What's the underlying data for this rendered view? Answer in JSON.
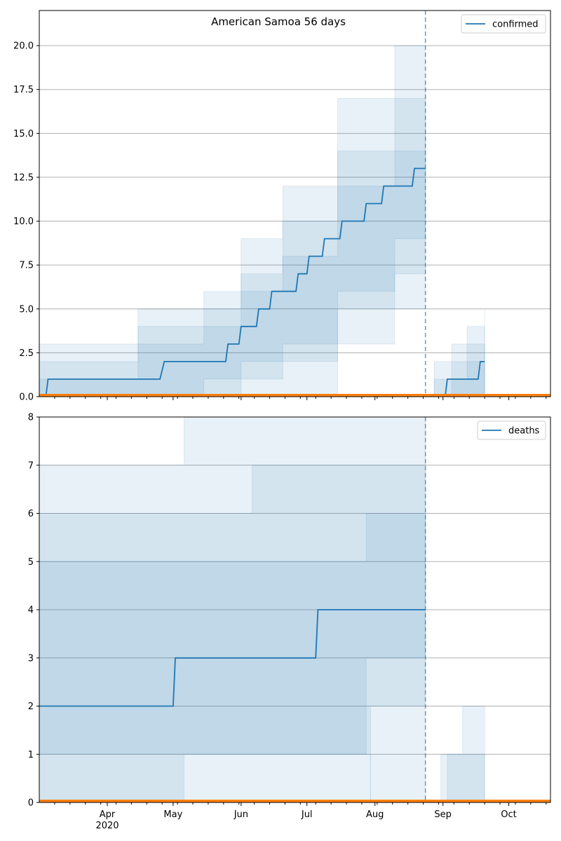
{
  "chart_data": [
    {
      "type": "line",
      "title": "American Samoa 56 days",
      "xlabel": "",
      "ylabel": "",
      "ylim": [
        0,
        22
      ],
      "yticks": [
        "0.0",
        "2.5",
        "5.0",
        "7.5",
        "10.0",
        "12.5",
        "15.0",
        "17.5",
        "20.0"
      ],
      "ytick_values": [
        0,
        2.5,
        5,
        7.5,
        10,
        12.5,
        15,
        17.5,
        20
      ],
      "grid": "horizontal",
      "legend": "top-right",
      "forecast_date": "2020-08-24",
      "series": [
        {
          "name": "confirmed",
          "color": "#1f77b4",
          "segments": [
            {
              "x": [
                "2020-03-04",
                "2020-03-05",
                "2020-04-25",
                "2020-04-27",
                "2020-05-25",
                "2020-05-26",
                "2020-05-31",
                "2020-06-01",
                "2020-06-08",
                "2020-06-09",
                "2020-06-14",
                "2020-06-15",
                "2020-06-26",
                "2020-06-27",
                "2020-07-01",
                "2020-07-02",
                "2020-07-08",
                "2020-07-09",
                "2020-07-16",
                "2020-07-17",
                "2020-07-27",
                "2020-07-28",
                "2020-08-04",
                "2020-08-05",
                "2020-08-18",
                "2020-08-19",
                "2020-08-24"
              ],
              "y": [
                0,
                1,
                1,
                2,
                2,
                3,
                3,
                4,
                4,
                5,
                5,
                6,
                6,
                7,
                7,
                8,
                8,
                9,
                9,
                10,
                10,
                11,
                11,
                12,
                12,
                13,
                13
              ]
            },
            {
              "x": [
                "2020-09-02",
                "2020-09-03",
                "2020-09-17",
                "2020-09-18",
                "2020-09-20"
              ],
              "y": [
                0,
                1,
                1,
                2,
                2
              ]
            }
          ]
        }
      ],
      "bands": [
        {
          "seg": 0,
          "x": [
            "2020-03-01",
            "2020-04-15",
            "2020-05-15",
            "2020-06-01",
            "2020-06-20",
            "2020-07-15",
            "2020-08-10",
            "2020-08-24"
          ],
          "lo": [
            0,
            0,
            0,
            0,
            0,
            3,
            5,
            6
          ],
          "hi": [
            3,
            5,
            6,
            9,
            12,
            17,
            20,
            22
          ]
        },
        {
          "seg": 0,
          "x": [
            "2020-03-01",
            "2020-04-15",
            "2020-05-15",
            "2020-06-01",
            "2020-06-20",
            "2020-07-15",
            "2020-08-10",
            "2020-08-24"
          ],
          "lo": [
            0,
            0,
            0,
            1,
            2,
            5,
            7,
            8
          ],
          "hi": [
            2,
            4,
            5,
            7,
            10,
            14,
            17,
            18
          ]
        },
        {
          "seg": 0,
          "x": [
            "2020-03-01",
            "2020-04-15",
            "2020-05-15",
            "2020-06-01",
            "2020-06-20",
            "2020-07-15",
            "2020-08-10",
            "2020-08-24"
          ],
          "lo": [
            0,
            0,
            1,
            2,
            3,
            6,
            9,
            10
          ],
          "hi": [
            1,
            3,
            4,
            6,
            8,
            12,
            14,
            16
          ]
        },
        {
          "seg": 1,
          "x": [
            "2020-08-28",
            "2020-09-05",
            "2020-09-12",
            "2020-09-20"
          ],
          "lo": [
            0,
            0,
            0,
            0
          ],
          "hi": [
            2,
            3,
            4,
            5
          ]
        },
        {
          "seg": 1,
          "x": [
            "2020-08-28",
            "2020-09-05",
            "2020-09-12",
            "2020-09-20"
          ],
          "lo": [
            0,
            0,
            0,
            0
          ],
          "hi": [
            1,
            2,
            3,
            4
          ]
        },
        {
          "seg": 1,
          "x": [
            "2020-08-28",
            "2020-09-05",
            "2020-09-12",
            "2020-09-20"
          ],
          "lo": [
            0,
            0,
            0,
            1
          ],
          "hi": [
            0,
            1,
            2,
            3
          ]
        }
      ]
    },
    {
      "type": "line",
      "title": "",
      "xlabel": "",
      "ylabel": "",
      "ylim": [
        0,
        8
      ],
      "yticks": [
        "0",
        "1",
        "2",
        "3",
        "4",
        "5",
        "6",
        "7",
        "8"
      ],
      "ytick_values": [
        0,
        1,
        2,
        3,
        4,
        5,
        6,
        7,
        8
      ],
      "grid": "horizontal",
      "legend": "top-right",
      "forecast_date": "2020-08-24",
      "series": [
        {
          "name": "deaths",
          "color": "#1f77b4",
          "segments": [
            {
              "x": [
                "2020-03-01",
                "2020-05-01",
                "2020-05-02",
                "2020-07-05",
                "2020-07-06",
                "2020-08-24"
              ],
              "y": [
                2,
                2,
                3,
                3,
                4,
                4
              ]
            }
          ]
        }
      ],
      "bands": [
        {
          "seg": 0,
          "x": [
            "2020-03-01",
            "2020-05-05",
            "2020-05-06",
            "2020-07-10",
            "2020-07-30",
            "2020-08-24"
          ],
          "lo": [
            0,
            0,
            1,
            1,
            0,
            0
          ],
          "hi": [
            7,
            7,
            8,
            8,
            8,
            8
          ]
        },
        {
          "seg": 0,
          "x": [
            "2020-03-01",
            "2020-04-20",
            "2020-04-21",
            "2020-06-05",
            "2020-06-06",
            "2020-07-30",
            "2020-08-24"
          ],
          "lo": [
            0,
            0,
            0,
            0,
            0,
            2,
            2
          ],
          "hi": [
            6,
            6,
            6,
            6,
            7,
            7,
            8
          ]
        },
        {
          "seg": 0,
          "x": [
            "2020-03-01",
            "2020-03-30",
            "2020-03-31",
            "2020-06-02",
            "2020-06-03",
            "2020-07-28",
            "2020-08-24"
          ],
          "lo": [
            1,
            1,
            1,
            1,
            1,
            3,
            3
          ],
          "hi": [
            5,
            5,
            5,
            5,
            5,
            6,
            6
          ]
        },
        {
          "seg": 1,
          "x": [
            "2020-08-31",
            "2020-09-10",
            "2020-09-20"
          ],
          "lo": [
            0,
            0,
            0
          ],
          "hi": [
            1,
            2,
            2
          ]
        },
        {
          "seg": 1,
          "x": [
            "2020-09-03",
            "2020-09-10",
            "2020-09-20"
          ],
          "lo": [
            0,
            0,
            0
          ],
          "hi": [
            1,
            1,
            1
          ]
        }
      ]
    }
  ],
  "x_axis": {
    "range": [
      "2020-03-01",
      "2020-10-20"
    ],
    "major_ticks": [
      {
        "date": "2020-04-01",
        "label": "Apr"
      },
      {
        "date": "2020-05-01",
        "label": "May"
      },
      {
        "date": "2020-06-01",
        "label": "Jun"
      },
      {
        "date": "2020-07-01",
        "label": "Jul"
      },
      {
        "date": "2020-08-01",
        "label": "Aug"
      },
      {
        "date": "2020-09-01",
        "label": "Sep"
      },
      {
        "date": "2020-10-01",
        "label": "Oct"
      }
    ],
    "year_label": "2020",
    "minor_ticks": [
      "2020-03-08",
      "2020-03-15",
      "2020-03-22",
      "2020-03-29",
      "2020-04-05",
      "2020-04-12",
      "2020-04-19",
      "2020-04-26",
      "2020-05-03",
      "2020-05-10",
      "2020-05-17",
      "2020-05-24",
      "2020-05-31",
      "2020-06-07",
      "2020-06-14",
      "2020-06-21",
      "2020-06-28",
      "2020-07-05",
      "2020-07-12",
      "2020-07-19",
      "2020-07-26",
      "2020-08-02",
      "2020-08-09",
      "2020-08-16",
      "2020-08-23",
      "2020-08-30",
      "2020-09-06",
      "2020-09-13",
      "2020-09-20",
      "2020-09-27",
      "2020-10-04",
      "2020-10-11",
      "2020-10-18"
    ]
  },
  "colors": {
    "line": "#1f77b4",
    "band": "#1f77b4",
    "baseline": "#ff7f0e",
    "grid": "#b0b0b0"
  }
}
